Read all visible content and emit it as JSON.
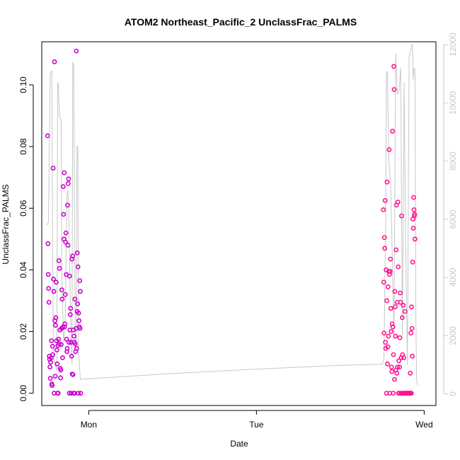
{
  "chart_data": {
    "type": "scatter",
    "title": "ATOM2 Northeast_Pacific_2 UnclassFrac_PALMS",
    "xlabel": "Date",
    "ylabel": "UnclassFrac_PALMS",
    "x_ticks": [
      {
        "label": "Mon",
        "value": 1.0
      },
      {
        "label": "Tue",
        "value": 2.0
      },
      {
        "label": "Wed",
        "value": 3.0
      }
    ],
    "xlim": [
      0.72,
      3.07
    ],
    "ylim": [
      -0.004,
      0.114
    ],
    "y_ticks": [
      0.0,
      0.02,
      0.04,
      0.06,
      0.08,
      0.1
    ],
    "y_tick_labels": [
      "0.00",
      "0.02",
      "0.04",
      "0.06",
      "0.08",
      "0.10"
    ],
    "y2_ticks": [
      0,
      2000,
      4000,
      6000,
      8000,
      10000,
      12000
    ],
    "y2_tick_labels": [
      "0",
      "2000",
      "4000",
      "6000",
      "8000",
      "10000",
      "12000"
    ],
    "y2lim": [
      -400,
      12100
    ],
    "colors": {
      "series1": "#cc00cc",
      "series2": "#ff1493",
      "altitude": "#c8c8c8",
      "axis_right": "#c8c8c8"
    },
    "series": [
      {
        "marker": "circle",
        "color": "#cc00cc",
        "points": [
          [
            0.755,
            0.0835
          ],
          [
            0.757,
            0.0485
          ],
          [
            0.759,
            0.0385
          ],
          [
            0.761,
            0.034
          ],
          [
            0.763,
            0.0295
          ],
          [
            0.765,
            0.012
          ],
          [
            0.767,
            0.011
          ],
          [
            0.769,
            0.0085
          ],
          [
            0.771,
            0.0048
          ],
          [
            0.773,
            0.01
          ],
          [
            0.776,
            0.0115
          ],
          [
            0.778,
            0.017
          ],
          [
            0.78,
            0.003
          ],
          [
            0.782,
            0.0025
          ],
          [
            0.784,
            0.0152
          ],
          [
            0.786,
            0.0125
          ],
          [
            0.788,
            0.073
          ],
          [
            0.79,
            0.037
          ],
          [
            0.792,
            0.033
          ],
          [
            0.794,
            0.0
          ],
          [
            0.796,
            0.1075
          ],
          [
            0.798,
            0.0235
          ],
          [
            0.8,
            0.0055
          ],
          [
            0.802,
            0.022
          ],
          [
            0.804,
            0.0245
          ],
          [
            0.806,
            0.036
          ],
          [
            0.808,
            0.017
          ],
          [
            0.81,
            0.014
          ],
          [
            0.812,
            0.0095
          ],
          [
            0.814,
            0.0
          ],
          [
            0.816,
            0.0155
          ],
          [
            0.818,
            0.0
          ],
          [
            0.82,
            0.0175
          ],
          [
            0.822,
            0.043
          ],
          [
            0.824,
            0.016
          ],
          [
            0.826,
            0.0405
          ],
          [
            0.828,
            0.0205
          ],
          [
            0.83,
            0.008
          ],
          [
            0.832,
            0.005
          ],
          [
            0.834,
            0.0075
          ],
          [
            0.836,
            0.0158
          ],
          [
            0.838,
            0.021
          ],
          [
            0.84,
            0.0335
          ],
          [
            0.842,
            0.0305
          ],
          [
            0.844,
            0.0115
          ],
          [
            0.846,
            0.0215
          ],
          [
            0.848,
            0.067
          ],
          [
            0.85,
            0.058
          ],
          [
            0.852,
            0.05
          ],
          [
            0.854,
            0.0715
          ],
          [
            0.856,
            0.0215
          ],
          [
            0.858,
            0.0225
          ],
          [
            0.86,
            0.032
          ],
          [
            0.862,
            0.049
          ],
          [
            0.864,
            0.052
          ],
          [
            0.866,
            0.0385
          ],
          [
            0.868,
            0.0175
          ],
          [
            0.87,
            0.0135
          ],
          [
            0.872,
            0.0145
          ],
          [
            0.874,
            0.061
          ],
          [
            0.876,
            0.048
          ],
          [
            0.878,
            0.068
          ],
          [
            0.88,
            0.0695
          ],
          [
            0.882,
            0.0165
          ],
          [
            0.884,
            0.0
          ],
          [
            0.886,
            0.038
          ],
          [
            0.888,
            0.0205
          ],
          [
            0.89,
            0.0255
          ],
          [
            0.892,
            0.0275
          ],
          [
            0.894,
            0.0165
          ],
          [
            0.896,
            0.0
          ],
          [
            0.898,
            0.012
          ],
          [
            0.9,
            0.0435
          ],
          [
            0.902,
            0.0062
          ],
          [
            0.904,
            0.0445
          ],
          [
            0.906,
            0.006
          ],
          [
            0.908,
            0.0205
          ],
          [
            0.91,
            0.0
          ],
          [
            0.912,
            0.0185
          ],
          [
            0.914,
            0.0165
          ],
          [
            0.916,
            0.0
          ],
          [
            0.918,
            0.0305
          ],
          [
            0.92,
            0.016
          ],
          [
            0.922,
            0.0135
          ],
          [
            0.924,
            0.021
          ],
          [
            0.926,
            0.111
          ],
          [
            0.928,
            0.0145
          ],
          [
            0.93,
            0.0265
          ],
          [
            0.932,
            0.0455
          ],
          [
            0.934,
            0.029
          ],
          [
            0.936,
            0.041
          ],
          [
            0.938,
            0.0
          ],
          [
            0.94,
            0.026
          ],
          [
            0.942,
            0.0235
          ],
          [
            0.944,
            0.0215
          ],
          [
            0.946,
            0.0365
          ],
          [
            0.948,
            0.021
          ],
          [
            0.95,
            0.033
          ],
          [
            0.952,
            0.0
          ]
        ]
      },
      {
        "marker": "circle",
        "color": "#ff1493",
        "points": [
          [
            2.757,
            0.0595
          ],
          [
            2.759,
            0.036
          ],
          [
            2.761,
            0.0195
          ],
          [
            2.763,
            0.0505
          ],
          [
            2.765,
            0.047
          ],
          [
            2.767,
            0.0625
          ],
          [
            2.769,
            0.0165
          ],
          [
            2.771,
            0.0145
          ],
          [
            2.773,
            0.04
          ],
          [
            2.775,
            0.0
          ],
          [
            2.777,
            0.03
          ],
          [
            2.779,
            0.0685
          ],
          [
            2.781,
            0.0095
          ],
          [
            2.783,
            0.015
          ],
          [
            2.785,
            0.0345
          ],
          [
            2.787,
            0.0185
          ],
          [
            2.789,
            0.0395
          ],
          [
            2.791,
            0.079
          ],
          [
            2.793,
            0.0385
          ],
          [
            2.795,
            0.0
          ],
          [
            2.797,
            0.0395
          ],
          [
            2.799,
            0.0435
          ],
          [
            2.801,
            0.0275
          ],
          [
            2.803,
            0.02
          ],
          [
            2.805,
            0.0085
          ],
          [
            2.807,
            0.007
          ],
          [
            2.809,
            0.0225
          ],
          [
            2.811,
            0.085
          ],
          [
            2.813,
            0.0215
          ],
          [
            2.815,
            0.0
          ],
          [
            2.817,
            0.0125
          ],
          [
            2.819,
            0.106
          ],
          [
            2.821,
            0.0985
          ],
          [
            2.823,
            0.0045
          ],
          [
            2.825,
            0.033
          ],
          [
            2.827,
            0.028
          ],
          [
            2.829,
            0.0185
          ],
          [
            2.831,
            0.0075
          ],
          [
            2.833,
            0.0465
          ],
          [
            2.835,
            0.061
          ],
          [
            2.837,
            0.0065
          ],
          [
            2.839,
            0.0295
          ],
          [
            2.841,
            0.0085
          ],
          [
            2.843,
            0.062
          ],
          [
            2.845,
            0.041
          ],
          [
            2.847,
            0.0
          ],
          [
            2.849,
            0.0105
          ],
          [
            2.851,
            0.0
          ],
          [
            2.853,
            0.0085
          ],
          [
            2.855,
            0.018
          ],
          [
            2.857,
            0.0325
          ],
          [
            2.859,
            0.0295
          ],
          [
            2.861,
            0.0
          ],
          [
            2.863,
            0.0115
          ],
          [
            2.865,
            0.0575
          ],
          [
            2.867,
            0.0
          ],
          [
            2.869,
            0.0245
          ],
          [
            2.871,
            0.0125
          ],
          [
            2.873,
            0.0
          ],
          [
            2.875,
            0.0285
          ],
          [
            2.877,
            0.0
          ],
          [
            2.879,
            0.0115
          ],
          [
            2.881,
            0.0
          ],
          [
            2.883,
            0.0
          ],
          [
            2.885,
            0.0265
          ],
          [
            2.887,
            0.0
          ],
          [
            2.889,
            0.0
          ],
          [
            2.891,
            0.0
          ],
          [
            2.893,
            0.0
          ],
          [
            2.895,
            0.0
          ],
          [
            2.897,
            0.0
          ],
          [
            2.899,
            0.0
          ],
          [
            2.901,
            0.0
          ],
          [
            2.903,
            0.0
          ],
          [
            2.905,
            0.0
          ],
          [
            2.907,
            0.0
          ],
          [
            2.909,
            0.0
          ],
          [
            2.911,
            0.0
          ],
          [
            2.913,
            0.0
          ],
          [
            2.915,
            0.0
          ],
          [
            2.917,
            0.0065
          ],
          [
            2.919,
            0.0
          ],
          [
            2.921,
            0.0195
          ],
          [
            2.923,
            0.0
          ],
          [
            2.925,
            0.028
          ],
          [
            2.927,
            0.021
          ],
          [
            2.929,
            0.012
          ],
          [
            2.931,
            0.0425
          ],
          [
            2.933,
            0.0565
          ],
          [
            2.935,
            0.0535
          ],
          [
            2.937,
            0.0635
          ],
          [
            2.939,
            0.0595
          ],
          [
            2.941,
            0.0575
          ],
          [
            2.943,
            0.058
          ],
          [
            2.945,
            0.05
          ]
        ]
      }
    ],
    "altitude_line": {
      "color": "#c8c8c8",
      "points": [
        [
          0.75,
          5800
        ],
        [
          0.76,
          5900
        ],
        [
          0.77,
          11000
        ],
        [
          0.78,
          11100
        ],
        [
          0.785,
          5000
        ],
        [
          0.79,
          1200
        ],
        [
          0.8,
          1000
        ],
        [
          0.81,
          800
        ],
        [
          0.815,
          10700
        ],
        [
          0.82,
          10600
        ],
        [
          0.825,
          9500
        ],
        [
          0.83,
          9500
        ],
        [
          0.835,
          9400
        ],
        [
          0.84,
          4000
        ],
        [
          0.85,
          1800
        ],
        [
          0.86,
          2500
        ],
        [
          0.87,
          6800
        ],
        [
          0.875,
          7000
        ],
        [
          0.88,
          6600
        ],
        [
          0.89,
          3200
        ],
        [
          0.9,
          1000
        ],
        [
          0.905,
          11400
        ],
        [
          0.91,
          11300
        ],
        [
          0.915,
          6500
        ],
        [
          0.92,
          2000
        ],
        [
          0.925,
          1500
        ],
        [
          0.93,
          8500
        ],
        [
          0.935,
          8500
        ],
        [
          0.94,
          1500
        ],
        [
          0.95,
          500
        ],
        [
          1.0,
          520
        ],
        [
          1.5,
          700
        ],
        [
          2.0,
          850
        ],
        [
          2.5,
          980
        ],
        [
          2.75,
          1020
        ],
        [
          2.76,
          1200
        ],
        [
          2.77,
          5800
        ],
        [
          2.775,
          11000
        ],
        [
          2.78,
          11100
        ],
        [
          2.79,
          8000
        ],
        [
          2.8,
          7200
        ],
        [
          2.81,
          4600
        ],
        [
          2.82,
          2000
        ],
        [
          2.83,
          11700
        ],
        [
          2.84,
          10300
        ],
        [
          2.85,
          10400
        ],
        [
          2.86,
          11200
        ],
        [
          2.87,
          2000
        ],
        [
          2.88,
          10700
        ],
        [
          2.89,
          5000
        ],
        [
          2.9,
          1000
        ],
        [
          2.91,
          11600
        ],
        [
          2.92,
          11800
        ],
        [
          2.925,
          12000
        ],
        [
          2.93,
          12000
        ],
        [
          2.935,
          10800
        ],
        [
          2.94,
          11200
        ],
        [
          2.945,
          11100
        ],
        [
          2.95,
          2600
        ],
        [
          2.955,
          500
        ],
        [
          2.96,
          300
        ]
      ]
    }
  }
}
